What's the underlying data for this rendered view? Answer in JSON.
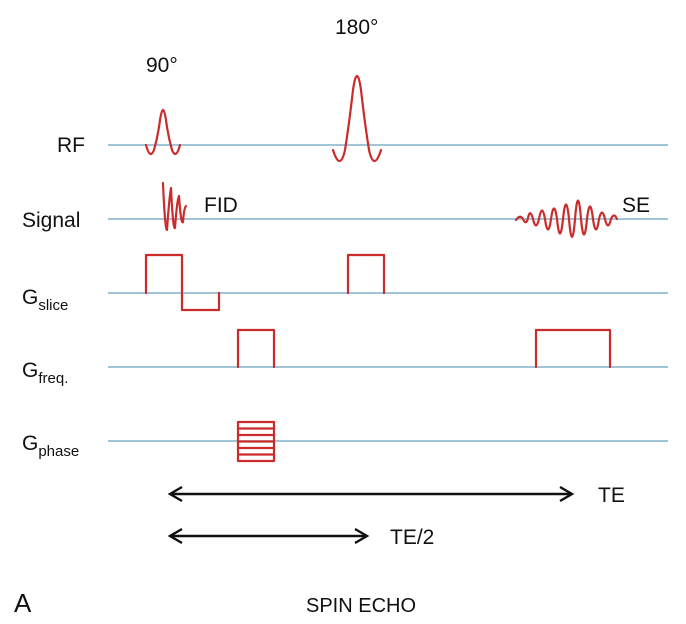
{
  "pulses": {
    "rf90_label": "90°",
    "rf180_label": "180°",
    "fid_label": "FID",
    "se_label": "SE"
  },
  "rows": {
    "rf": "RF",
    "signal": "Signal",
    "gslice_main": "G",
    "gslice_sub": "slice",
    "gfreq_main": "G",
    "gfreq_sub": "freq.",
    "gphase_main": "G",
    "gphase_sub": "phase"
  },
  "timing": {
    "te_label": "TE",
    "te_half_label": "TE/2"
  },
  "panel_letter": "A",
  "caption": "SPIN ECHO",
  "colors": {
    "waveform": "#cc2b2b",
    "baseline": "#7fb3cc",
    "arrow": "#111111"
  }
}
